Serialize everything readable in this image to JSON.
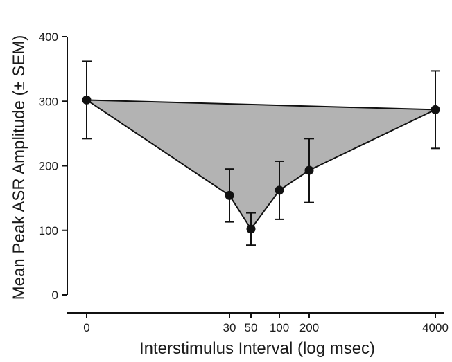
{
  "chart_data": {
    "type": "line",
    "title": "",
    "xlabel": "Interstimulus Interval (log msec)",
    "ylabel": "Mean Peak ASR Amplitude (± SEM)",
    "x_scale": "log",
    "categories": [
      "0",
      "30",
      "50",
      "100",
      "200",
      "4000"
    ],
    "x": [
      0,
      30,
      50,
      100,
      200,
      4000
    ],
    "ylim": [
      0,
      400
    ],
    "yticks": [
      "0",
      "100",
      "200",
      "300",
      "400"
    ],
    "grid": false,
    "legend": "none",
    "fill_color": "#b3b3b3",
    "series": [
      {
        "values": [
          302,
          154,
          102,
          162,
          193,
          287
        ],
        "sem_upper": [
          362,
          195,
          127,
          207,
          242,
          347
        ],
        "sem_lower": [
          242,
          113,
          77,
          117,
          143,
          227
        ]
      }
    ]
  }
}
